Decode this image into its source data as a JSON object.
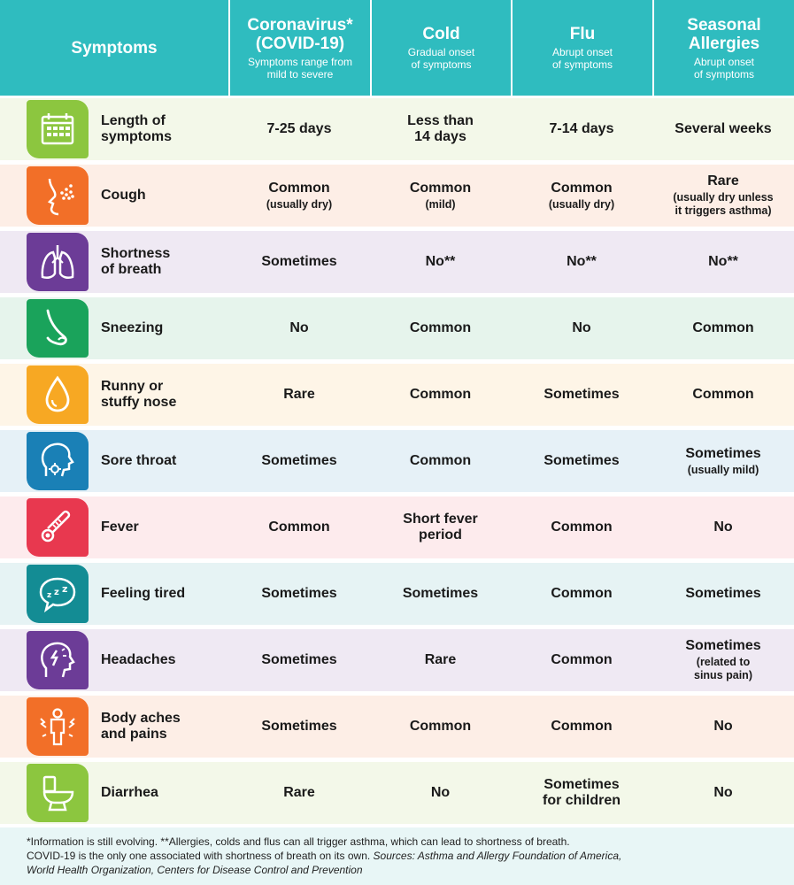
{
  "header": {
    "symptoms": "Symptoms",
    "columns": [
      {
        "title1": "Coronavirus*",
        "title2": "(COVID-19)",
        "sub1": "Symptoms range from",
        "sub2": "mild to severe"
      },
      {
        "title1": "Cold",
        "title2": "",
        "sub1": "Gradual onset",
        "sub2": "of symptoms"
      },
      {
        "title1": "Flu",
        "title2": "",
        "sub1": "Abrupt onset",
        "sub2": "of symptoms"
      },
      {
        "title1": "Seasonal",
        "title2": "Allergies",
        "sub1": "Abrupt onset",
        "sub2": "of symptoms"
      }
    ]
  },
  "rows": [
    {
      "icon": "calendar-icon",
      "icon_color": "#8cc63f",
      "bg": "#f3f8e9",
      "label1": "Length of",
      "label2": "symptoms",
      "cells": [
        {
          "m1": "7-25 days",
          "m2": "",
          "s1": "",
          "s2": ""
        },
        {
          "m1": "Less than",
          "m2": "14 days",
          "s1": "",
          "s2": ""
        },
        {
          "m1": "7-14 days",
          "m2": "",
          "s1": "",
          "s2": ""
        },
        {
          "m1": "Several weeks",
          "m2": "",
          "s1": "",
          "s2": ""
        }
      ]
    },
    {
      "icon": "cough-icon",
      "icon_color": "#f26f28",
      "bg": "#fdeee6",
      "label1": "Cough",
      "label2": "",
      "cells": [
        {
          "m1": "Common",
          "m2": "",
          "s1": "(usually dry)",
          "s2": ""
        },
        {
          "m1": "Common",
          "m2": "",
          "s1": "(mild)",
          "s2": ""
        },
        {
          "m1": "Common",
          "m2": "",
          "s1": "(usually dry)",
          "s2": ""
        },
        {
          "m1": "Rare",
          "m2": "",
          "s1": "(usually dry unless",
          "s2": "it triggers asthma)"
        }
      ]
    },
    {
      "icon": "lungs-icon",
      "icon_color": "#6c3c97",
      "bg": "#efe9f3",
      "label1": "Shortness",
      "label2": "of breath",
      "cells": [
        {
          "m1": "Sometimes",
          "m2": "",
          "s1": "",
          "s2": ""
        },
        {
          "m1": "No**",
          "m2": "",
          "s1": "",
          "s2": ""
        },
        {
          "m1": "No**",
          "m2": "",
          "s1": "",
          "s2": ""
        },
        {
          "m1": "No**",
          "m2": "",
          "s1": "",
          "s2": ""
        }
      ]
    },
    {
      "icon": "nose-icon",
      "icon_color": "#1aa35b",
      "bg": "#e6f4ec",
      "label1": "Sneezing",
      "label2": "",
      "cells": [
        {
          "m1": "No",
          "m2": "",
          "s1": "",
          "s2": ""
        },
        {
          "m1": "Common",
          "m2": "",
          "s1": "",
          "s2": ""
        },
        {
          "m1": "No",
          "m2": "",
          "s1": "",
          "s2": ""
        },
        {
          "m1": "Common",
          "m2": "",
          "s1": "",
          "s2": ""
        }
      ]
    },
    {
      "icon": "droplet-icon",
      "icon_color": "#f7a823",
      "bg": "#fef5e7",
      "label1": "Runny or",
      "label2": "stuffy nose",
      "cells": [
        {
          "m1": "Rare",
          "m2": "",
          "s1": "",
          "s2": ""
        },
        {
          "m1": "Common",
          "m2": "",
          "s1": "",
          "s2": ""
        },
        {
          "m1": "Sometimes",
          "m2": "",
          "s1": "",
          "s2": ""
        },
        {
          "m1": "Common",
          "m2": "",
          "s1": "",
          "s2": ""
        }
      ]
    },
    {
      "icon": "throat-icon",
      "icon_color": "#1a80b6",
      "bg": "#e6f1f7",
      "label1": "Sore throat",
      "label2": "",
      "cells": [
        {
          "m1": "Sometimes",
          "m2": "",
          "s1": "",
          "s2": ""
        },
        {
          "m1": "Common",
          "m2": "",
          "s1": "",
          "s2": ""
        },
        {
          "m1": "Sometimes",
          "m2": "",
          "s1": "",
          "s2": ""
        },
        {
          "m1": "Sometimes",
          "m2": "",
          "s1": "(usually mild)",
          "s2": ""
        }
      ]
    },
    {
      "icon": "thermometer-icon",
      "icon_color": "#e8384f",
      "bg": "#fdebed",
      "label1": "Fever",
      "label2": "",
      "cells": [
        {
          "m1": "Common",
          "m2": "",
          "s1": "",
          "s2": ""
        },
        {
          "m1": "Short fever",
          "m2": "period",
          "s1": "",
          "s2": ""
        },
        {
          "m1": "Common",
          "m2": "",
          "s1": "",
          "s2": ""
        },
        {
          "m1": "No",
          "m2": "",
          "s1": "",
          "s2": ""
        }
      ]
    },
    {
      "icon": "sleep-bubble-icon",
      "icon_color": "#138c94",
      "bg": "#e6f3f4",
      "label1": "Feeling tired",
      "label2": "",
      "cells": [
        {
          "m1": "Sometimes",
          "m2": "",
          "s1": "",
          "s2": ""
        },
        {
          "m1": "Sometimes",
          "m2": "",
          "s1": "",
          "s2": ""
        },
        {
          "m1": "Common",
          "m2": "",
          "s1": "",
          "s2": ""
        },
        {
          "m1": "Sometimes",
          "m2": "",
          "s1": "",
          "s2": ""
        }
      ]
    },
    {
      "icon": "headache-icon",
      "icon_color": "#6c3c97",
      "bg": "#efe9f3",
      "label1": "Headaches",
      "label2": "",
      "cells": [
        {
          "m1": "Sometimes",
          "m2": "",
          "s1": "",
          "s2": ""
        },
        {
          "m1": "Rare",
          "m2": "",
          "s1": "",
          "s2": ""
        },
        {
          "m1": "Common",
          "m2": "",
          "s1": "",
          "s2": ""
        },
        {
          "m1": "Sometimes",
          "m2": "",
          "s1": "(related to",
          "s2": "sinus pain)"
        }
      ]
    },
    {
      "icon": "body-aches-icon",
      "icon_color": "#f26f28",
      "bg": "#fdeee6",
      "label1": "Body aches",
      "label2": "and pains",
      "cells": [
        {
          "m1": "Sometimes",
          "m2": "",
          "s1": "",
          "s2": ""
        },
        {
          "m1": "Common",
          "m2": "",
          "s1": "",
          "s2": ""
        },
        {
          "m1": "Common",
          "m2": "",
          "s1": "",
          "s2": ""
        },
        {
          "m1": "No",
          "m2": "",
          "s1": "",
          "s2": ""
        }
      ]
    },
    {
      "icon": "toilet-icon",
      "icon_color": "#8cc63f",
      "bg": "#f3f8e9",
      "label1": "Diarrhea",
      "label2": "",
      "cells": [
        {
          "m1": "Rare",
          "m2": "",
          "s1": "",
          "s2": ""
        },
        {
          "m1": "No",
          "m2": "",
          "s1": "",
          "s2": ""
        },
        {
          "m1": "Sometimes",
          "m2": "for children",
          "s1": "",
          "s2": ""
        },
        {
          "m1": "No",
          "m2": "",
          "s1": "",
          "s2": ""
        }
      ]
    }
  ],
  "footer": {
    "line1": "*Information is still evolving. **Allergies, colds and flus can all trigger asthma, which can lead to shortness of breath.",
    "line2a": "COVID-19 is the only one associated with shortness of breath on its own. ",
    "line2b": "Sources: Asthma and Allergy Foundation of America,",
    "line3": "World Health Organization, Centers for Disease Control and Prevention"
  },
  "colors": {
    "header_bg": "#2fbcbf",
    "footer_bg": "#e8f6f6"
  }
}
